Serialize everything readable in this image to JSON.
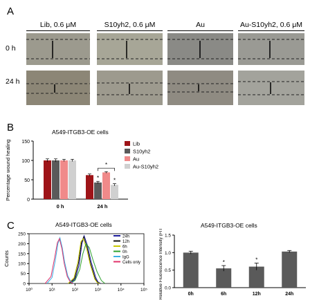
{
  "panels": {
    "a": {
      "letter": "A",
      "columns": [
        "Lib, 0.6 μM",
        "S10yh2, 0.6 μM",
        "Au",
        "Au-S10yh2, 0.6 μM"
      ],
      "rows": [
        "0 h",
        "24 h"
      ]
    },
    "b": {
      "letter": "B"
    },
    "c": {
      "letter": "C"
    }
  },
  "chart_data": [
    {
      "type": "bar",
      "title": "A549-ITGB3-OE cells",
      "ylabel": "Percentage wound healing",
      "categories": [
        "0 h",
        "24 h"
      ],
      "yticks": [
        "0",
        "50",
        "100",
        "150"
      ],
      "ylim": [
        0,
        150
      ],
      "series": [
        {
          "name": "Lib",
          "color": "#9e1418",
          "values": [
            100,
            62
          ],
          "errors": [
            4,
            3
          ]
        },
        {
          "name": "S10yh2",
          "color": "#5a5a5a",
          "values": [
            100,
            43
          ],
          "errors": [
            4,
            3
          ]
        },
        {
          "name": "Au",
          "color": "#f08a8a",
          "values": [
            100,
            69
          ],
          "errors": [
            3,
            2
          ]
        },
        {
          "name": "Au-S10yh2",
          "color": "#d0d0d0",
          "values": [
            100,
            37
          ],
          "errors": [
            3,
            3
          ]
        }
      ],
      "annotations": [
        "*",
        "*",
        "*"
      ],
      "legend": "right"
    },
    {
      "type": "line",
      "title": "A549-ITGB3-OE cells",
      "ylabel": "Counts",
      "yticks": [
        "0",
        "50",
        "100",
        "150",
        "200",
        "250"
      ],
      "xticks": [
        "10⁰",
        "10¹",
        "10²",
        "10³",
        "10⁴",
        "10⁵"
      ],
      "ylim": [
        0,
        250
      ],
      "xscale": "log",
      "xlim": [
        1,
        100000
      ],
      "series": [
        {
          "name": "24h",
          "color": "#1a1a9a",
          "x": [
            60,
            100,
            150,
            200,
            250,
            350,
            500,
            800,
            1000,
            1300
          ],
          "y": [
            0,
            20,
            90,
            200,
            240,
            190,
            110,
            30,
            8,
            0
          ]
        },
        {
          "name": "12h",
          "color": "#111111",
          "x": [
            55,
            95,
            140,
            190,
            240,
            330,
            480,
            750,
            950,
            1250
          ],
          "y": [
            0,
            25,
            100,
            205,
            235,
            185,
            100,
            25,
            6,
            0
          ]
        },
        {
          "name": "6h",
          "color": "#c8c800",
          "x": [
            50,
            90,
            135,
            180,
            230,
            320,
            460,
            720,
            920,
            1200
          ],
          "y": [
            0,
            28,
            110,
            210,
            225,
            175,
            95,
            22,
            5,
            0
          ]
        },
        {
          "name": "0h",
          "color": "#2ca02c",
          "x": [
            60,
            100,
            160,
            220,
            300,
            420,
            600,
            900,
            1400,
            2000
          ],
          "y": [
            0,
            15,
            70,
            150,
            200,
            180,
            120,
            60,
            15,
            0
          ]
        },
        {
          "name": "IgG",
          "color": "#3ab0e6",
          "x": [
            6,
            10,
            14,
            18,
            22,
            28,
            35,
            48,
            65,
            90
          ],
          "y": [
            0,
            30,
            120,
            200,
            230,
            180,
            110,
            40,
            10,
            0
          ]
        },
        {
          "name": "Cells only",
          "color": "#e0306a",
          "x": [
            5,
            9,
            13,
            17,
            21,
            27,
            34,
            46,
            62,
            85
          ],
          "y": [
            0,
            35,
            130,
            205,
            225,
            175,
            100,
            35,
            8,
            0
          ]
        }
      ],
      "legend": "top-right"
    },
    {
      "type": "bar",
      "title": "A549-ITGB3-OE cells",
      "ylabel": "Relative Fluorescence Intensity (FITC)",
      "categories": [
        "0h",
        "6h",
        "12h",
        "24h"
      ],
      "yticks": [
        "0.0",
        "0.5",
        "1.0",
        "1.5"
      ],
      "ylim": [
        0,
        1.5
      ],
      "series": [
        {
          "name": "",
          "color": "#5a5a5a",
          "values": [
            1.0,
            0.55,
            0.6,
            1.03
          ],
          "errors": [
            0.04,
            0.08,
            0.1,
            0.03
          ]
        }
      ],
      "annotations": [
        "*",
        "*"
      ]
    }
  ]
}
